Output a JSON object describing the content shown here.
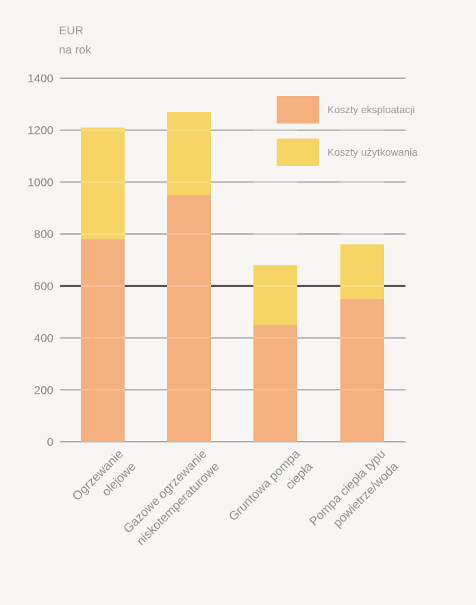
{
  "chart_data": {
    "type": "bar",
    "stacked": true,
    "ylabel_lines": [
      "EUR",
      "na rok"
    ],
    "ylim": [
      0,
      1400
    ],
    "yticks": [
      0,
      200,
      400,
      600,
      800,
      1000,
      1200,
      1400
    ],
    "grid": true,
    "legend_position": "top-right",
    "categories": [
      [
        "Ogrzewanie",
        "olejowe"
      ],
      [
        "Gazowe ogrzewanie",
        "niskotemperaturowe"
      ],
      [
        "Gruntowa pompa",
        "ciepła"
      ],
      [
        "Pompa ciepła typu",
        "powietrze/woda"
      ]
    ],
    "series": [
      {
        "name": "Koszty eksploatacji",
        "color": "#f4b07e",
        "values": [
          780,
          950,
          450,
          550
        ]
      },
      {
        "name": "Koszty użytkowania",
        "color": "#f6d465",
        "values": [
          430,
          320,
          230,
          210
        ]
      }
    ]
  }
}
